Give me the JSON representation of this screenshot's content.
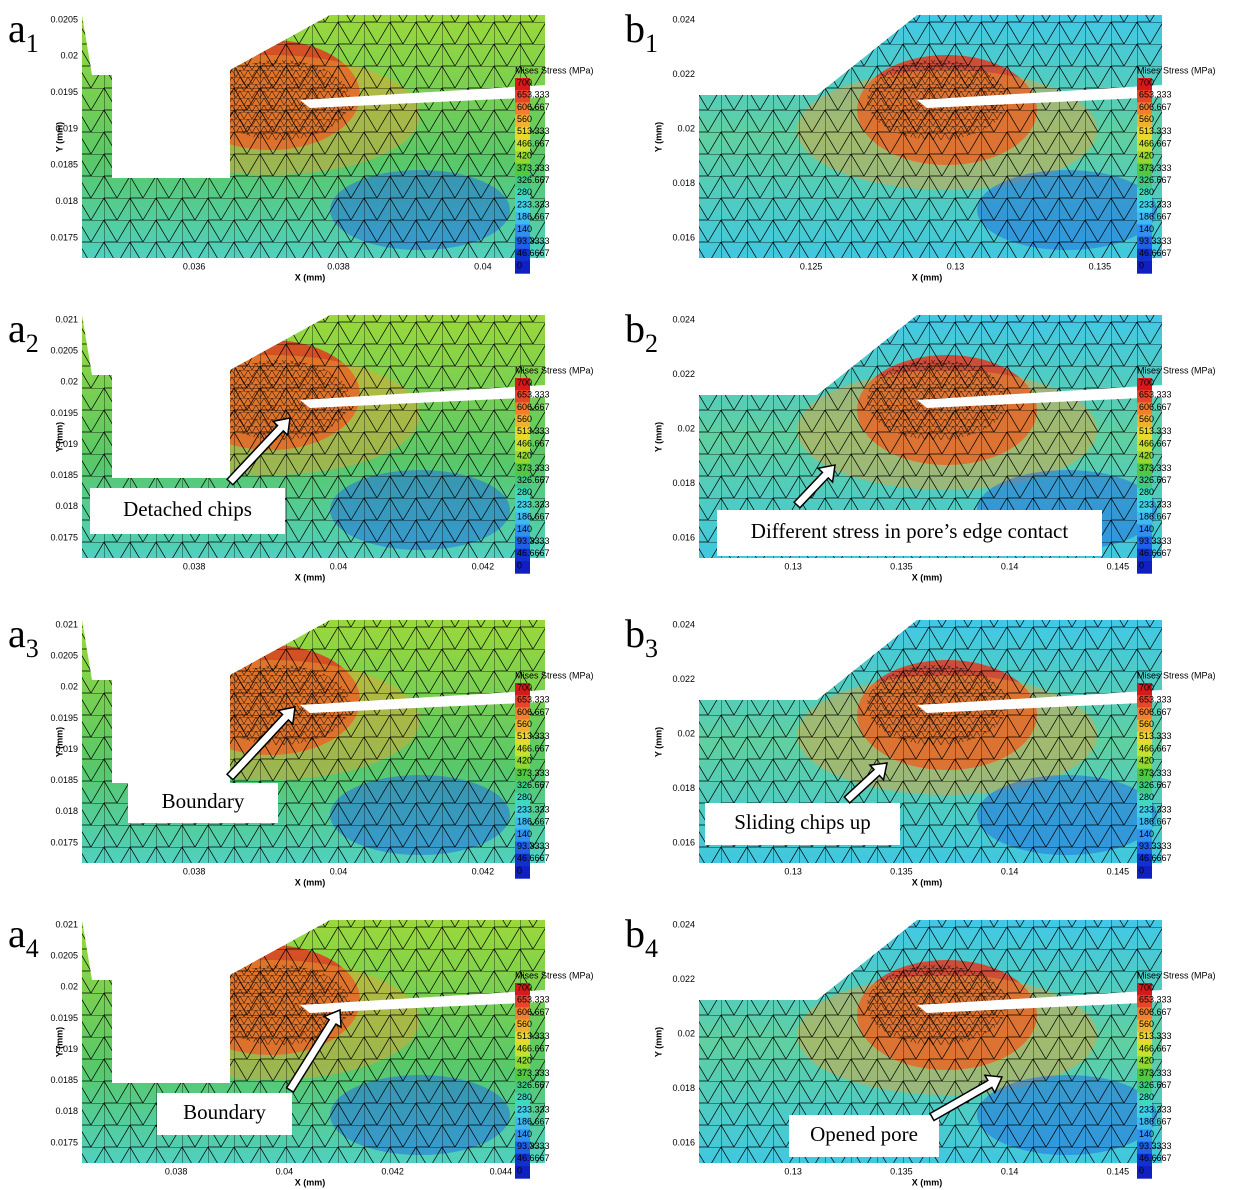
{
  "axis_labels": {
    "x": "X (mm)",
    "y": "Y (mm)"
  },
  "legend": {
    "title": "Mises Stress (MPa)",
    "labels": [
      "700",
      "653.333",
      "606.667",
      "560",
      "513.333",
      "466.667",
      "420",
      "373.333",
      "326.667",
      "280",
      "233.333",
      "186.667",
      "140",
      "93.3333",
      "46.6667",
      "0"
    ]
  },
  "panels": [
    {
      "label": "a",
      "sub": "1",
      "xticks": [
        "0.036",
        "0.038",
        "0.04"
      ],
      "yticks": [
        "0.0205",
        "0.02",
        "0.0195",
        "0.019",
        "0.0185",
        "0.018",
        "0.0175"
      ]
    },
    {
      "label": "b",
      "sub": "1",
      "xticks": [
        "0.125",
        "0.13",
        "0.135"
      ],
      "yticks": [
        "0.024",
        "0.022",
        "0.02",
        "0.018",
        "0.016"
      ]
    },
    {
      "label": "a",
      "sub": "2",
      "xticks": [
        "0.038",
        "0.04",
        "0.042"
      ],
      "yticks": [
        "0.021",
        "0.0205",
        "0.02",
        "0.0195",
        "0.019",
        "0.0185",
        "0.018",
        "0.0175"
      ],
      "annotation": "Detached chips"
    },
    {
      "label": "b",
      "sub": "2",
      "xticks": [
        "0.13",
        "0.135",
        "0.14",
        "0.145"
      ],
      "yticks": [
        "0.024",
        "0.022",
        "0.02",
        "0.018",
        "0.016"
      ],
      "annotation": "Different stress in pore’s edge contact"
    },
    {
      "label": "a",
      "sub": "3",
      "xticks": [
        "0.038",
        "0.04",
        "0.042"
      ],
      "yticks": [
        "0.021",
        "0.0205",
        "0.02",
        "0.0195",
        "0.019",
        "0.0185",
        "0.018",
        "0.0175"
      ],
      "annotation": "Boundary"
    },
    {
      "label": "b",
      "sub": "3",
      "xticks": [
        "0.13",
        "0.135",
        "0.14",
        "0.145"
      ],
      "yticks": [
        "0.024",
        "0.022",
        "0.02",
        "0.018",
        "0.016"
      ],
      "annotation": "Sliding chips up"
    },
    {
      "label": "a",
      "sub": "4",
      "xticks": [
        "0.038",
        "0.04",
        "0.042",
        "0.044"
      ],
      "yticks": [
        "0.021",
        "0.0205",
        "0.02",
        "0.0195",
        "0.019",
        "0.0185",
        "0.018",
        "0.0175"
      ],
      "annotation": "Boundary"
    },
    {
      "label": "b",
      "sub": "4",
      "xticks": [
        "0.13",
        "0.135",
        "0.14",
        "0.145"
      ],
      "yticks": [
        "0.024",
        "0.022",
        "0.02",
        "0.018",
        "0.016"
      ],
      "annotation": "Opened pore"
    }
  ]
}
